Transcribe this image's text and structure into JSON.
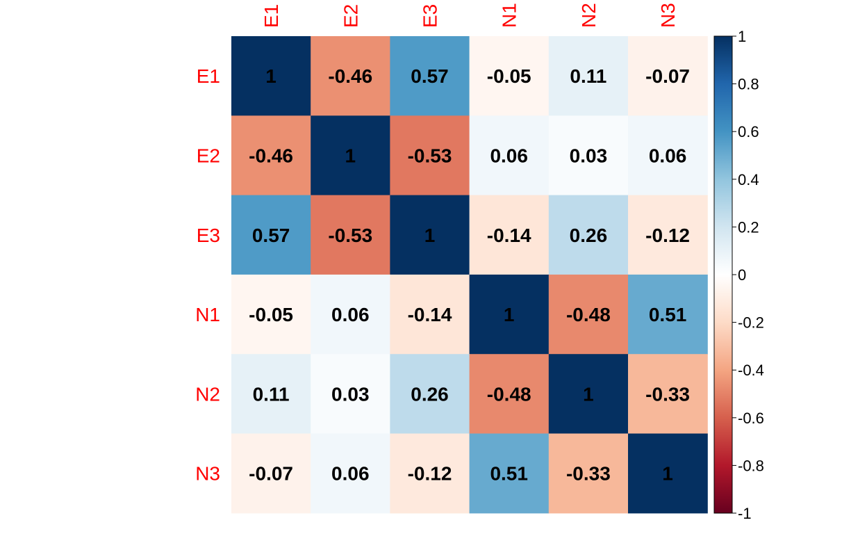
{
  "chart_data": {
    "type": "heatmap",
    "title": "",
    "rows": [
      "E1",
      "E2",
      "E3",
      "N1",
      "N2",
      "N3"
    ],
    "columns": [
      "E1",
      "E2",
      "E3",
      "N1",
      "N2",
      "N3"
    ],
    "values": [
      [
        1,
        -0.46,
        0.57,
        -0.05,
        0.11,
        -0.07
      ],
      [
        -0.46,
        1,
        -0.53,
        0.06,
        0.03,
        0.06
      ],
      [
        0.57,
        -0.53,
        1,
        -0.14,
        0.26,
        -0.12
      ],
      [
        -0.05,
        0.06,
        -0.14,
        1,
        -0.48,
        0.51
      ],
      [
        0.11,
        0.03,
        0.26,
        -0.48,
        1,
        -0.33
      ],
      [
        -0.07,
        0.06,
        -0.12,
        0.51,
        -0.33,
        1
      ]
    ],
    "value_labels": [
      [
        "1",
        "-0.46",
        "0.57",
        "-0.05",
        "0.11",
        "-0.07"
      ],
      [
        "-0.46",
        "1",
        "-0.53",
        "0.06",
        "0.03",
        "0.06"
      ],
      [
        "0.57",
        "-0.53",
        "1",
        "-0.14",
        "0.26",
        "-0.12"
      ],
      [
        "-0.05",
        "0.06",
        "-0.14",
        "1",
        "-0.48",
        "0.51"
      ],
      [
        "0.11",
        "0.03",
        "0.26",
        "-0.48",
        "1",
        "-0.33"
      ],
      [
        "-0.07",
        "0.06",
        "-0.12",
        "0.51",
        "-0.33",
        "1"
      ]
    ],
    "colorbar": {
      "range": [
        -1,
        1
      ],
      "ticks": [
        "1",
        "0.8",
        "0.6",
        "0.4",
        "0.2",
        "0",
        "-0.2",
        "-0.4",
        "-0.6",
        "-0.8",
        "-1"
      ],
      "tick_values": [
        1,
        0.8,
        0.6,
        0.4,
        0.2,
        0,
        -0.2,
        -0.4,
        -0.6,
        -0.8,
        -1
      ],
      "placement": "right"
    },
    "colors": {
      "label_color": "#ff0000",
      "scale": [
        "#67001F",
        "#B2182B",
        "#D6604D",
        "#F4A582",
        "#FDDBC7",
        "#FFFFFF",
        "#D1E5F0",
        "#92C5DE",
        "#4393C3",
        "#2166AC",
        "#053061"
      ]
    },
    "grid": false
  }
}
